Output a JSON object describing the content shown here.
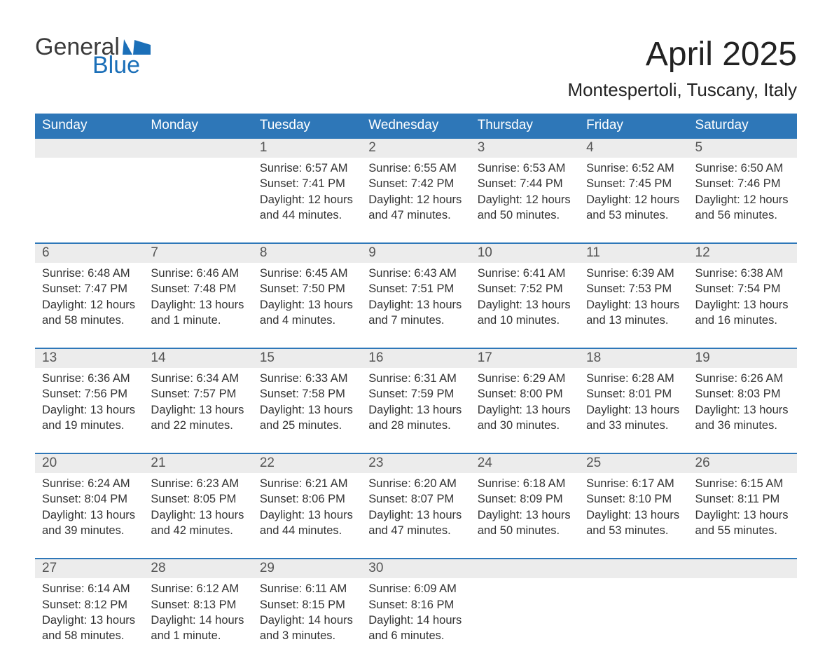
{
  "logo": {
    "word1": "General",
    "word2": "Blue",
    "flag_color": "#1b6fb8"
  },
  "title": "April 2025",
  "location": "Montespertoli, Tuscany, Italy",
  "colors": {
    "header_bg": "#2e77b8",
    "header_text": "#ffffff",
    "daynum_bg": "#ececec",
    "daynum_border": "#2e77b8",
    "body_text": "#333333",
    "page_bg": "#ffffff"
  },
  "typography": {
    "title_fontsize": 48,
    "location_fontsize": 26,
    "weekday_fontsize": 19,
    "cell_fontsize": 16.5
  },
  "weekdays": [
    "Sunday",
    "Monday",
    "Tuesday",
    "Wednesday",
    "Thursday",
    "Friday",
    "Saturday"
  ],
  "weeks": [
    [
      null,
      null,
      {
        "n": "1",
        "sr": "Sunrise: 6:57 AM",
        "ss": "Sunset: 7:41 PM",
        "d1": "Daylight: 12 hours",
        "d2": "and 44 minutes."
      },
      {
        "n": "2",
        "sr": "Sunrise: 6:55 AM",
        "ss": "Sunset: 7:42 PM",
        "d1": "Daylight: 12 hours",
        "d2": "and 47 minutes."
      },
      {
        "n": "3",
        "sr": "Sunrise: 6:53 AM",
        "ss": "Sunset: 7:44 PM",
        "d1": "Daylight: 12 hours",
        "d2": "and 50 minutes."
      },
      {
        "n": "4",
        "sr": "Sunrise: 6:52 AM",
        "ss": "Sunset: 7:45 PM",
        "d1": "Daylight: 12 hours",
        "d2": "and 53 minutes."
      },
      {
        "n": "5",
        "sr": "Sunrise: 6:50 AM",
        "ss": "Sunset: 7:46 PM",
        "d1": "Daylight: 12 hours",
        "d2": "and 56 minutes."
      }
    ],
    [
      {
        "n": "6",
        "sr": "Sunrise: 6:48 AM",
        "ss": "Sunset: 7:47 PM",
        "d1": "Daylight: 12 hours",
        "d2": "and 58 minutes."
      },
      {
        "n": "7",
        "sr": "Sunrise: 6:46 AM",
        "ss": "Sunset: 7:48 PM",
        "d1": "Daylight: 13 hours",
        "d2": "and 1 minute."
      },
      {
        "n": "8",
        "sr": "Sunrise: 6:45 AM",
        "ss": "Sunset: 7:50 PM",
        "d1": "Daylight: 13 hours",
        "d2": "and 4 minutes."
      },
      {
        "n": "9",
        "sr": "Sunrise: 6:43 AM",
        "ss": "Sunset: 7:51 PM",
        "d1": "Daylight: 13 hours",
        "d2": "and 7 minutes."
      },
      {
        "n": "10",
        "sr": "Sunrise: 6:41 AM",
        "ss": "Sunset: 7:52 PM",
        "d1": "Daylight: 13 hours",
        "d2": "and 10 minutes."
      },
      {
        "n": "11",
        "sr": "Sunrise: 6:39 AM",
        "ss": "Sunset: 7:53 PM",
        "d1": "Daylight: 13 hours",
        "d2": "and 13 minutes."
      },
      {
        "n": "12",
        "sr": "Sunrise: 6:38 AM",
        "ss": "Sunset: 7:54 PM",
        "d1": "Daylight: 13 hours",
        "d2": "and 16 minutes."
      }
    ],
    [
      {
        "n": "13",
        "sr": "Sunrise: 6:36 AM",
        "ss": "Sunset: 7:56 PM",
        "d1": "Daylight: 13 hours",
        "d2": "and 19 minutes."
      },
      {
        "n": "14",
        "sr": "Sunrise: 6:34 AM",
        "ss": "Sunset: 7:57 PM",
        "d1": "Daylight: 13 hours",
        "d2": "and 22 minutes."
      },
      {
        "n": "15",
        "sr": "Sunrise: 6:33 AM",
        "ss": "Sunset: 7:58 PM",
        "d1": "Daylight: 13 hours",
        "d2": "and 25 minutes."
      },
      {
        "n": "16",
        "sr": "Sunrise: 6:31 AM",
        "ss": "Sunset: 7:59 PM",
        "d1": "Daylight: 13 hours",
        "d2": "and 28 minutes."
      },
      {
        "n": "17",
        "sr": "Sunrise: 6:29 AM",
        "ss": "Sunset: 8:00 PM",
        "d1": "Daylight: 13 hours",
        "d2": "and 30 minutes."
      },
      {
        "n": "18",
        "sr": "Sunrise: 6:28 AM",
        "ss": "Sunset: 8:01 PM",
        "d1": "Daylight: 13 hours",
        "d2": "and 33 minutes."
      },
      {
        "n": "19",
        "sr": "Sunrise: 6:26 AM",
        "ss": "Sunset: 8:03 PM",
        "d1": "Daylight: 13 hours",
        "d2": "and 36 minutes."
      }
    ],
    [
      {
        "n": "20",
        "sr": "Sunrise: 6:24 AM",
        "ss": "Sunset: 8:04 PM",
        "d1": "Daylight: 13 hours",
        "d2": "and 39 minutes."
      },
      {
        "n": "21",
        "sr": "Sunrise: 6:23 AM",
        "ss": "Sunset: 8:05 PM",
        "d1": "Daylight: 13 hours",
        "d2": "and 42 minutes."
      },
      {
        "n": "22",
        "sr": "Sunrise: 6:21 AM",
        "ss": "Sunset: 8:06 PM",
        "d1": "Daylight: 13 hours",
        "d2": "and 44 minutes."
      },
      {
        "n": "23",
        "sr": "Sunrise: 6:20 AM",
        "ss": "Sunset: 8:07 PM",
        "d1": "Daylight: 13 hours",
        "d2": "and 47 minutes."
      },
      {
        "n": "24",
        "sr": "Sunrise: 6:18 AM",
        "ss": "Sunset: 8:09 PM",
        "d1": "Daylight: 13 hours",
        "d2": "and 50 minutes."
      },
      {
        "n": "25",
        "sr": "Sunrise: 6:17 AM",
        "ss": "Sunset: 8:10 PM",
        "d1": "Daylight: 13 hours",
        "d2": "and 53 minutes."
      },
      {
        "n": "26",
        "sr": "Sunrise: 6:15 AM",
        "ss": "Sunset: 8:11 PM",
        "d1": "Daylight: 13 hours",
        "d2": "and 55 minutes."
      }
    ],
    [
      {
        "n": "27",
        "sr": "Sunrise: 6:14 AM",
        "ss": "Sunset: 8:12 PM",
        "d1": "Daylight: 13 hours",
        "d2": "and 58 minutes."
      },
      {
        "n": "28",
        "sr": "Sunrise: 6:12 AM",
        "ss": "Sunset: 8:13 PM",
        "d1": "Daylight: 14 hours",
        "d2": "and 1 minute."
      },
      {
        "n": "29",
        "sr": "Sunrise: 6:11 AM",
        "ss": "Sunset: 8:15 PM",
        "d1": "Daylight: 14 hours",
        "d2": "and 3 minutes."
      },
      {
        "n": "30",
        "sr": "Sunrise: 6:09 AM",
        "ss": "Sunset: 8:16 PM",
        "d1": "Daylight: 14 hours",
        "d2": "and 6 minutes."
      },
      null,
      null,
      null
    ]
  ]
}
